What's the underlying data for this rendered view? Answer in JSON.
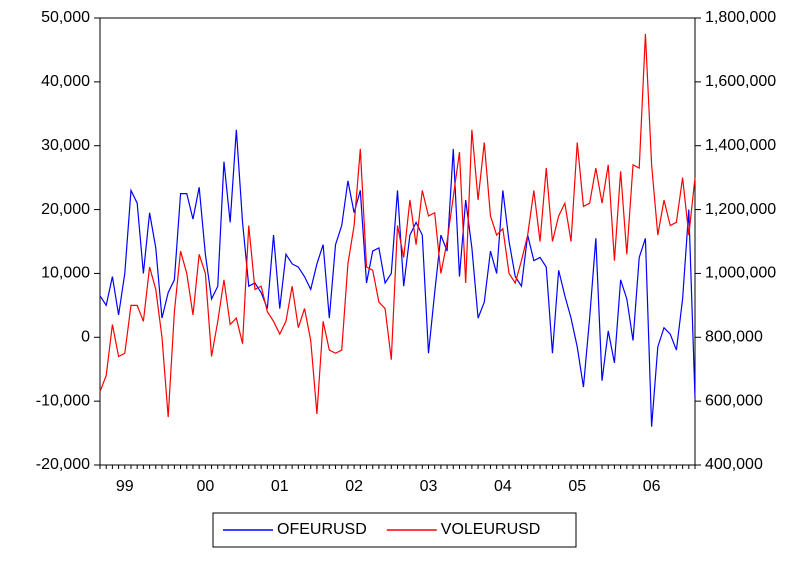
{
  "chart_data": {
    "type": "line",
    "categories": [
      null,
      null,
      null,
      null,
      "99",
      null,
      null,
      null,
      null,
      null,
      null,
      null,
      null,
      null,
      null,
      null,
      null,
      "00",
      null,
      null,
      null,
      null,
      null,
      null,
      null,
      null,
      null,
      null,
      null,
      "01",
      null,
      null,
      null,
      null,
      null,
      null,
      null,
      null,
      null,
      null,
      null,
      "02",
      null,
      null,
      null,
      null,
      null,
      null,
      null,
      null,
      null,
      null,
      null,
      "03",
      null,
      null,
      null,
      null,
      null,
      null,
      null,
      null,
      null,
      null,
      null,
      "04",
      null,
      null,
      null,
      null,
      null,
      null,
      null,
      null,
      null,
      null,
      null,
      "05",
      null,
      null,
      null,
      null,
      null,
      null,
      null,
      null,
      null,
      null,
      null,
      "06",
      null,
      null,
      null,
      null,
      null,
      null,
      null
    ],
    "series": [
      {
        "name": "OFEURUSD",
        "color": "#0000ff",
        "axis": "y",
        "values": [
          6500,
          5000,
          9500,
          3500,
          10000,
          23000,
          21000,
          10000,
          19500,
          14000,
          3000,
          7000,
          9000,
          22500,
          22500,
          18500,
          23500,
          13000,
          6000,
          8000,
          27500,
          18000,
          32500,
          18000,
          8000,
          8500,
          7000,
          4500,
          16000,
          4500,
          13000,
          11500,
          11000,
          9500,
          7500,
          11500,
          14500,
          3000,
          14500,
          17500,
          24500,
          19500,
          23000,
          8500,
          13500,
          14000,
          8500,
          10000,
          23000,
          8000,
          16000,
          18000,
          16000,
          -2500,
          7000,
          16000,
          13500,
          29500,
          9500,
          21500,
          14000,
          3000,
          5500,
          13500,
          10000,
          23000,
          15000,
          9500,
          8000,
          16000,
          12000,
          12500,
          11000,
          -2500,
          10500,
          6500,
          3000,
          -1500,
          -7800,
          3000,
          15500,
          -6800,
          1000,
          -4000,
          9000,
          6000,
          -500,
          12500,
          15500,
          -14000,
          -1500,
          1500,
          500,
          -2000,
          6000,
          20000,
          -9500
        ]
      },
      {
        "name": "VOLEURUSD",
        "color": "#ff0000",
        "axis": "y2",
        "values": [
          630000,
          680000,
          840000,
          740000,
          750000,
          900000,
          900000,
          850000,
          1020000,
          950000,
          800000,
          550000,
          880000,
          1070000,
          1000000,
          870000,
          1060000,
          1000000,
          740000,
          850000,
          980000,
          840000,
          860000,
          780000,
          1150000,
          950000,
          960000,
          880000,
          850000,
          810000,
          850000,
          960000,
          830000,
          890000,
          790000,
          560000,
          850000,
          760000,
          750000,
          760000,
          1030000,
          1150000,
          1390000,
          1020000,
          1010000,
          910000,
          890000,
          730000,
          1150000,
          1050000,
          1230000,
          1090000,
          1260000,
          1180000,
          1190000,
          1000000,
          1100000,
          1240000,
          1380000,
          970000,
          1450000,
          1230000,
          1410000,
          1180000,
          1120000,
          1140000,
          1000000,
          970000,
          1040000,
          1120000,
          1260000,
          1100000,
          1330000,
          1100000,
          1180000,
          1220000,
          1100000,
          1410000,
          1210000,
          1220000,
          1330000,
          1220000,
          1340000,
          1040000,
          1320000,
          1060000,
          1340000,
          1330000,
          1750000,
          1340000,
          1120000,
          1230000,
          1150000,
          1160000,
          1300000,
          1120000,
          1300000
        ]
      }
    ],
    "ylim": [
      -20000,
      50000
    ],
    "yticks": [
      {
        "value": -20000,
        "label": "-20,000"
      },
      {
        "value": -10000,
        "label": "-10,000"
      },
      0,
      {
        "value": 10000,
        "label": "10,000"
      },
      {
        "value": 20000,
        "label": "20,000"
      },
      {
        "value": 30000,
        "label": "30,000"
      },
      {
        "value": 40000,
        "label": "40,000"
      },
      {
        "value": 50000,
        "label": "50,000"
      }
    ],
    "y2lim": [
      400000,
      1800000
    ],
    "y2ticks": [
      {
        "value": 400000,
        "label": "400,000"
      },
      {
        "value": 600000,
        "label": "600,000"
      },
      {
        "value": 800000,
        "label": "800,000"
      },
      {
        "value": 1000000,
        "label": "1,000,000"
      },
      {
        "value": 1200000,
        "label": "1,200,000"
      },
      {
        "value": 1400000,
        "label": "1,400,000"
      },
      {
        "value": 1600000,
        "label": "1,600,000"
      },
      {
        "value": 1800000,
        "label": "1,800,000"
      }
    ],
    "legend": "bottom"
  }
}
